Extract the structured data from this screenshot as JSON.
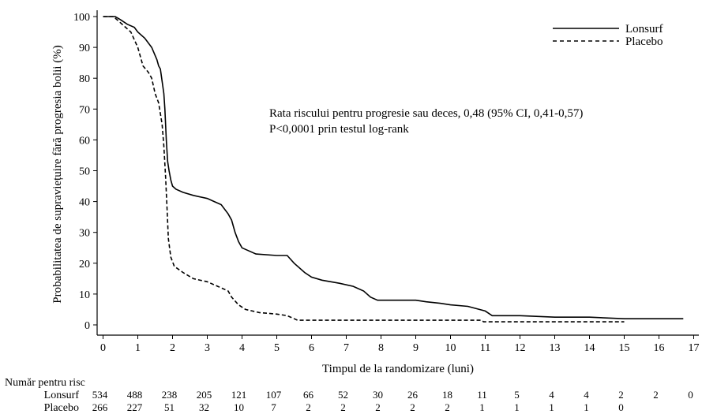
{
  "chart_data": {
    "type": "line",
    "title": "",
    "xlabel": "Timpul de la randomizare (luni)",
    "ylabel": "Probabilitatea de supraviețuire fără progresia bolii (%)",
    "xlim": [
      0,
      17
    ],
    "ylim": [
      0,
      100
    ],
    "x_ticks": [
      0,
      1,
      2,
      3,
      4,
      5,
      6,
      7,
      8,
      9,
      10,
      11,
      12,
      13,
      14,
      15,
      16,
      17
    ],
    "y_ticks": [
      0,
      10,
      20,
      30,
      40,
      50,
      60,
      70,
      80,
      90,
      100
    ],
    "grid": false,
    "legend_position": "top-right",
    "annotation": {
      "line1": "Rata riscului pentru progresie sau deces, 0,48 (95% CI, 0,41-0,57)",
      "line2": "P<0,0001 prin testul log-rank"
    },
    "series": [
      {
        "name": "Lonsurf",
        "style": "solid",
        "color": "#000000",
        "points": [
          [
            0,
            100
          ],
          [
            0.35,
            100
          ],
          [
            0.5,
            99
          ],
          [
            0.7,
            97.5
          ],
          [
            0.9,
            96.5
          ],
          [
            1.0,
            95
          ],
          [
            1.2,
            93
          ],
          [
            1.4,
            90
          ],
          [
            1.55,
            86
          ],
          [
            1.6,
            84
          ],
          [
            1.65,
            83
          ],
          [
            1.7,
            79
          ],
          [
            1.75,
            75
          ],
          [
            1.78,
            70
          ],
          [
            1.82,
            60
          ],
          [
            1.86,
            53
          ],
          [
            1.9,
            50
          ],
          [
            1.95,
            47
          ],
          [
            2.0,
            45
          ],
          [
            2.1,
            44
          ],
          [
            2.3,
            43
          ],
          [
            2.6,
            42
          ],
          [
            3.0,
            41
          ],
          [
            3.2,
            40
          ],
          [
            3.4,
            39
          ],
          [
            3.6,
            36
          ],
          [
            3.7,
            34
          ],
          [
            3.8,
            30
          ],
          [
            3.9,
            27
          ],
          [
            4.0,
            25
          ],
          [
            4.2,
            24
          ],
          [
            4.4,
            23
          ],
          [
            5.0,
            22.5
          ],
          [
            5.3,
            22.5
          ],
          [
            5.5,
            20
          ],
          [
            5.8,
            17
          ],
          [
            6.0,
            15.5
          ],
          [
            6.3,
            14.5
          ],
          [
            6.8,
            13.5
          ],
          [
            7.2,
            12.5
          ],
          [
            7.5,
            11
          ],
          [
            7.7,
            9
          ],
          [
            7.9,
            8
          ],
          [
            8.0,
            8
          ],
          [
            9.0,
            8
          ],
          [
            9.3,
            7.5
          ],
          [
            9.7,
            7
          ],
          [
            10.0,
            6.5
          ],
          [
            10.5,
            6
          ],
          [
            11.0,
            4.5
          ],
          [
            11.2,
            3
          ],
          [
            12.0,
            3
          ],
          [
            13.0,
            2.5
          ],
          [
            14.0,
            2.5
          ],
          [
            15.0,
            2
          ],
          [
            16.7,
            2
          ]
        ]
      },
      {
        "name": "Placebo",
        "style": "dashed",
        "color": "#000000",
        "points": [
          [
            0,
            100
          ],
          [
            0.3,
            100
          ],
          [
            0.5,
            98
          ],
          [
            0.8,
            95
          ],
          [
            1.0,
            90
          ],
          [
            1.15,
            84
          ],
          [
            1.3,
            82
          ],
          [
            1.4,
            80
          ],
          [
            1.5,
            75
          ],
          [
            1.6,
            72
          ],
          [
            1.7,
            65
          ],
          [
            1.75,
            58
          ],
          [
            1.8,
            48
          ],
          [
            1.84,
            38
          ],
          [
            1.88,
            28
          ],
          [
            1.95,
            22
          ],
          [
            2.05,
            19
          ],
          [
            2.3,
            17
          ],
          [
            2.6,
            15
          ],
          [
            3.0,
            14
          ],
          [
            3.3,
            12.5
          ],
          [
            3.6,
            11
          ],
          [
            3.7,
            9
          ],
          [
            3.9,
            6.5
          ],
          [
            4.1,
            5
          ],
          [
            4.5,
            4
          ],
          [
            5.0,
            3.5
          ],
          [
            5.3,
            3
          ],
          [
            5.6,
            1.5
          ],
          [
            6.0,
            1.5
          ],
          [
            10.9,
            1.5
          ],
          [
            10.95,
            1
          ],
          [
            15.0,
            1
          ]
        ]
      }
    ],
    "risk_table": {
      "title": "Număr pentru risc",
      "rows": [
        {
          "label": "Lonsurf",
          "values": [
            "534",
            "488",
            "238",
            "205",
            "121",
            "107",
            "66",
            "52",
            "30",
            "26",
            "18",
            "11",
            "5",
            "4",
            "4",
            "2",
            "2",
            "0"
          ]
        },
        {
          "label": "Placebo",
          "values": [
            "266",
            "227",
            "51",
            "32",
            "10",
            "7",
            "2",
            "2",
            "2",
            "2",
            "2",
            "1",
            "1",
            "1",
            "1",
            "0"
          ]
        }
      ]
    }
  }
}
